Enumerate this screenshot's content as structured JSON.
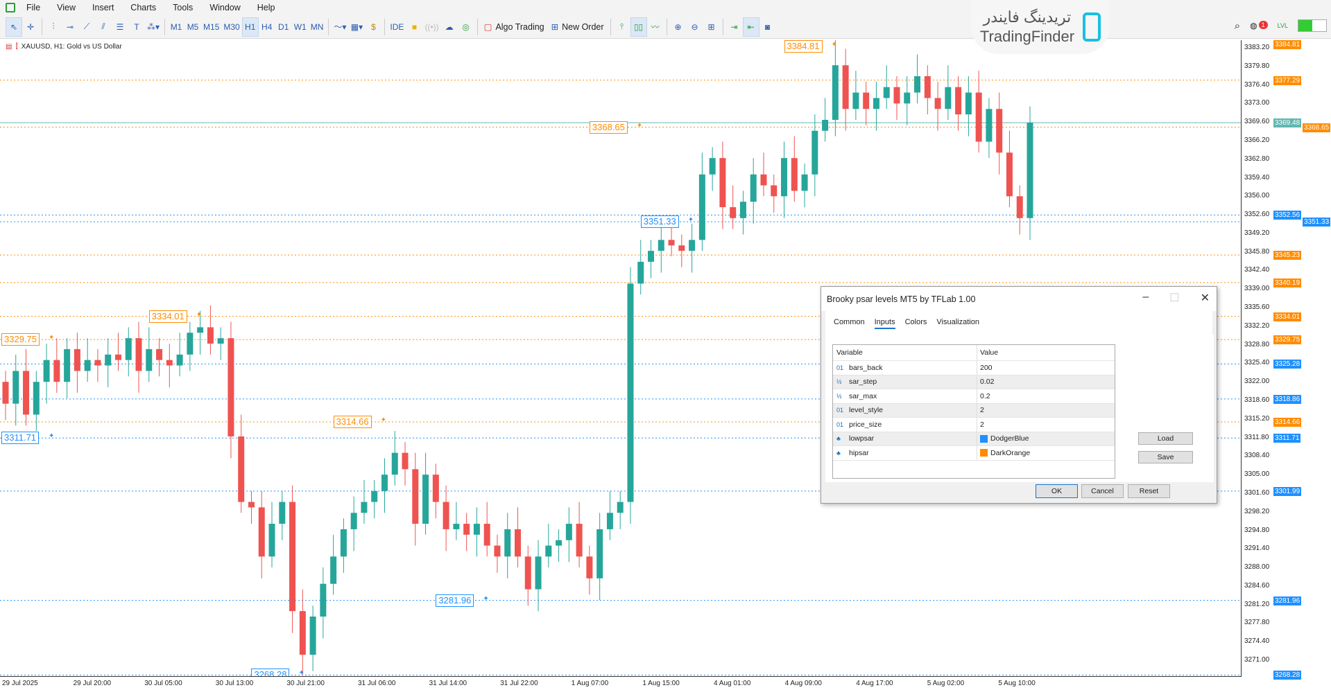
{
  "menu": [
    "File",
    "View",
    "Insert",
    "Charts",
    "Tools",
    "Window",
    "Help"
  ],
  "toolbar": {
    "timeframes": [
      "M1",
      "M5",
      "M15",
      "M30",
      "H1",
      "H4",
      "D1",
      "W1",
      "MN"
    ],
    "active_tf": "H1",
    "ide": "IDE",
    "algo": "Algo Trading",
    "new_order": "New Order",
    "notif_count": "1",
    "lvl": "LVL"
  },
  "logo": {
    "fa": "تریدینگ فایندر",
    "en": "TradingFinder"
  },
  "chart": {
    "title": "XAUUSD, H1:  Gold vs US Dollar",
    "colors": {
      "up": "#26a69a",
      "down": "#ef5350",
      "low": "#1e90ff",
      "high": "#ff8c00",
      "bid": "#5fb8b0"
    },
    "first_open": 3322,
    "closes": [
      3318,
      3324,
      3316,
      3322,
      3326,
      3322,
      3328,
      3324,
      3326,
      3325,
      3327,
      3326,
      3330,
      3324,
      3328,
      3326,
      3325,
      3327,
      3331,
      3332,
      3329,
      3330,
      3312,
      3300,
      3299,
      3290,
      3296,
      3300,
      3280,
      3272,
      3279,
      3285,
      3290,
      3295,
      3298,
      3300,
      3302,
      3305,
      3309,
      3306,
      3296,
      3305,
      3300,
      3295,
      3296,
      3294,
      3296,
      3292,
      3290,
      3295,
      3290,
      3284,
      3290,
      3292,
      3293,
      3296,
      3290,
      3286,
      3295,
      3298,
      3300,
      3340,
      3344,
      3346,
      3348,
      3347,
      3346,
      3348,
      3360,
      3363,
      3354,
      3352,
      3355,
      3360,
      3358,
      3356,
      3363,
      3357,
      3360,
      3368,
      3370,
      3380,
      3372,
      3375,
      3372,
      3374,
      3376,
      3373,
      3375,
      3378,
      3374,
      3372,
      3376,
      3371,
      3375,
      3366,
      3372,
      3364,
      3356,
      3352,
      3369.48
    ],
    "extremes": [
      {
        "index": 81,
        "high": 3384.81
      },
      {
        "index": 29,
        "low": 3268.28
      }
    ],
    "current_price": "3369.48",
    "high_levels": [
      "3384.81",
      "3377.29",
      "3368.65",
      "3345.23",
      "3340.19",
      "3334.01",
      "3329.75",
      "3314.66"
    ],
    "low_levels": [
      "3352.56",
      "3351.33",
      "3325.28",
      "3318.86",
      "3311.71",
      "3301.99",
      "3281.96",
      "3268.28"
    ],
    "chart_labels": [
      {
        "text": "3384.81",
        "type": "high",
        "candle": 76
      },
      {
        "text": "3368.65",
        "type": "high",
        "candle": 57
      },
      {
        "text": "3351.33",
        "type": "low",
        "candle": 62
      },
      {
        "text": "3334.01",
        "type": "high",
        "candle": 14
      },
      {
        "text": "3329.75",
        "type": "high",
        "candle": -1
      },
      {
        "text": "3311.71",
        "type": "low",
        "candle": -1
      },
      {
        "text": "3314.66",
        "type": "high",
        "candle": 32
      },
      {
        "text": "3281.96",
        "type": "low",
        "candle": 42
      },
      {
        "text": "3268.28",
        "type": "low",
        "candle": 24
      }
    ],
    "price_ticks": [
      "3383.20",
      "3379.80",
      "3376.40",
      "3373.00",
      "3369.60",
      "3366.20",
      "3362.80",
      "3359.40",
      "3356.00",
      "3352.60",
      "3349.20",
      "3345.80",
      "3342.40",
      "3339.00",
      "3335.60",
      "3332.20",
      "3328.80",
      "3325.40",
      "3322.00",
      "3318.60",
      "3315.20",
      "3311.80",
      "3308.40",
      "3305.00",
      "3301.60",
      "3298.20",
      "3294.80",
      "3291.40",
      "3288.00",
      "3284.60",
      "3281.20",
      "3277.80",
      "3274.40",
      "3271.00"
    ],
    "time_labels": [
      "29 Jul 2025",
      "29 Jul 20:00",
      "30 Jul 05:00",
      "30 Jul 13:00",
      "30 Jul 21:00",
      "31 Jul 06:00",
      "31 Jul 14:00",
      "31 Jul 22:00",
      "1 Aug 07:00",
      "1 Aug 15:00",
      "4 Aug 01:00",
      "4 Aug 09:00",
      "4 Aug 17:00",
      "5 Aug 02:00",
      "5 Aug 10:00"
    ]
  },
  "dialog": {
    "title": "Brooky psar levels MT5 by TFLab 1.00",
    "tabs": [
      "Common",
      "Inputs",
      "Colors",
      "Visualization"
    ],
    "col_variable": "Variable",
    "col_value": "Value",
    "params": [
      {
        "icon": "01",
        "name": "bars_back",
        "value": "200"
      },
      {
        "icon": "½",
        "name": "sar_step",
        "value": "0.02"
      },
      {
        "icon": "½",
        "name": "sar_max",
        "value": "0.2"
      },
      {
        "icon": "01",
        "name": "level_style",
        "value": "2"
      },
      {
        "icon": "01",
        "name": "price_size",
        "value": "2"
      },
      {
        "icon": "♣",
        "name": "lowpsar",
        "value": "DodgerBlue",
        "color": "#1e90ff"
      },
      {
        "icon": "♣",
        "name": "hipsar",
        "value": "DarkOrange",
        "color": "#ff8c00"
      }
    ],
    "load": "Load",
    "save": "Save",
    "ok": "OK",
    "cancel": "Cancel",
    "reset": "Reset"
  }
}
